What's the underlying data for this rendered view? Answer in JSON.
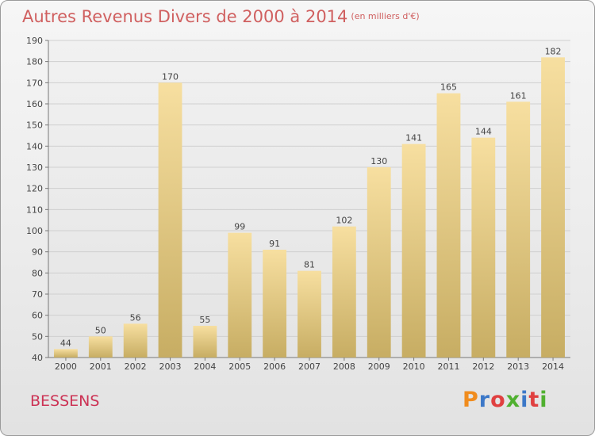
{
  "header": {
    "title": "Autres Revenus Divers de 2000 à 2014",
    "unit": "(en milliers d'€)"
  },
  "footer": {
    "city": "BESSENS",
    "logo": "Proxiti",
    "logo_colors": [
      "#f08c1e",
      "#3c78c8",
      "#e04040",
      "#50b030",
      "#3c78c8",
      "#e04040",
      "#50b030"
    ]
  },
  "colors": {
    "title": "#d06060",
    "city": "#cc3355",
    "bar_top": "#f7dfa0",
    "bar_bottom": "#c7ad63",
    "grid": "#cfcfcf"
  },
  "chart_data": {
    "type": "bar",
    "title": "Autres Revenus Divers de 2000 à 2014",
    "subtitle": "(en milliers d'€)",
    "categories": [
      "2000",
      "2001",
      "2002",
      "2003",
      "2004",
      "2005",
      "2006",
      "2007",
      "2008",
      "2009",
      "2010",
      "2011",
      "2012",
      "2013",
      "2014"
    ],
    "values": [
      44,
      50,
      56,
      170,
      55,
      99,
      91,
      81,
      102,
      130,
      141,
      165,
      144,
      161,
      182
    ],
    "yticks": [
      40,
      50,
      60,
      70,
      80,
      90,
      100,
      110,
      120,
      130,
      140,
      150,
      160,
      170,
      180,
      190
    ],
    "ylim": [
      40,
      190
    ],
    "grid": true,
    "xlabel": "",
    "ylabel": ""
  }
}
